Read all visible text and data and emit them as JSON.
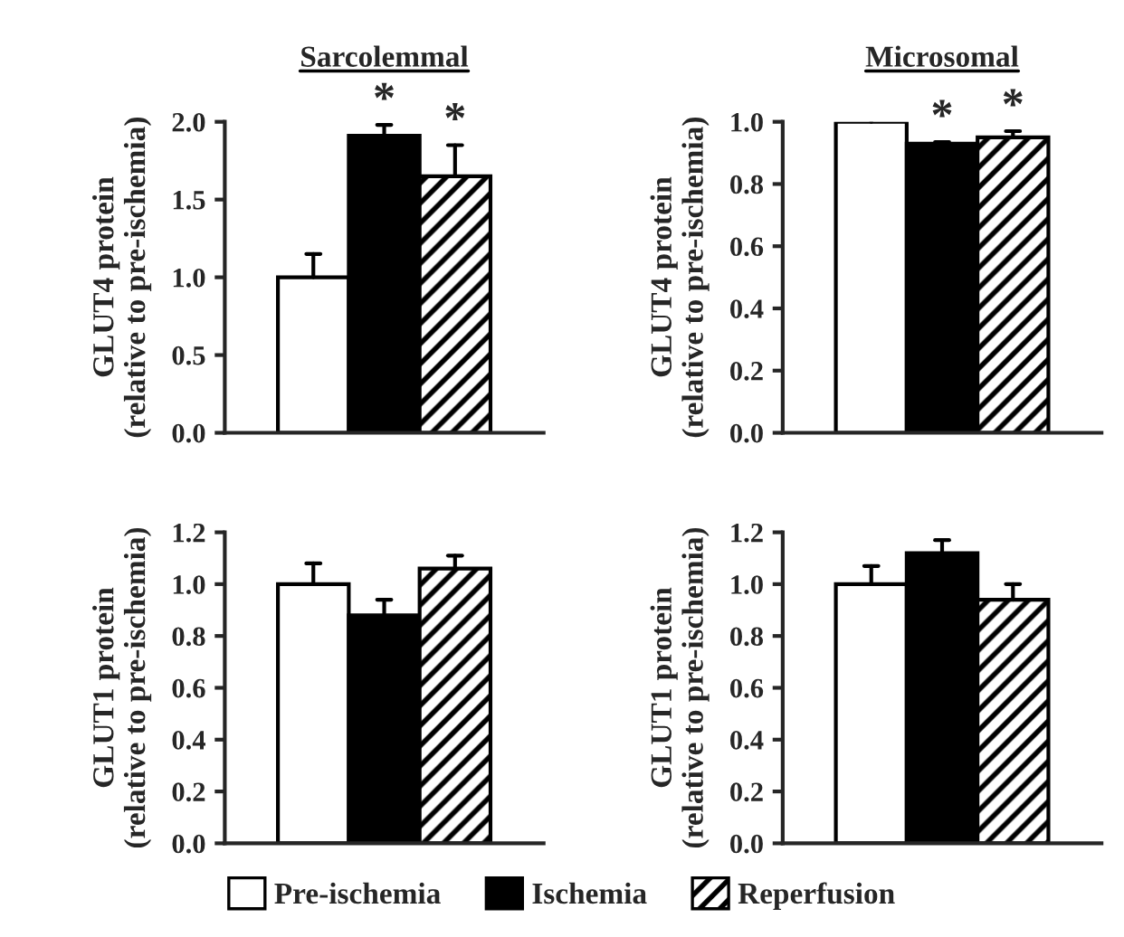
{
  "chart_data": [
    {
      "type": "bar",
      "title": "Sarcolemmal",
      "ylabel": "GLUT4 protein\n(relative to pre-ischemia)",
      "categories": [
        null
      ],
      "ylim": [
        0,
        2.0
      ],
      "yticks": [
        {
          "value": 0,
          "label": "0.0"
        },
        {
          "value": 0.5,
          "label": "0.5"
        },
        {
          "value": 1.0,
          "label": "1.0"
        },
        {
          "value": 1.5,
          "label": "1.5"
        },
        {
          "value": 2.0,
          "label": "2.0"
        }
      ],
      "grid": false,
      "legend": "bottom",
      "annotations": [
        {
          "text": "*",
          "y": 1.98
        },
        {
          "text": "*",
          "y": 1.85
        }
      ],
      "series": [
        {
          "name": "Pre-ischemia",
          "color": "#ffffff",
          "values": [
            1.0
          ],
          "errors": [
            [
              1.0,
              1.15
            ]
          ]
        },
        {
          "name": "Ischemia",
          "color": "#000000",
          "values": [
            1.91
          ],
          "errors": [
            [
              1.91,
              1.98
            ]
          ]
        },
        {
          "name": "Reperfusion",
          "color": "#000000",
          "values": [
            1.65
          ],
          "errors": [
            [
              1.65,
              1.85
            ]
          ]
        }
      ]
    },
    {
      "type": "bar",
      "title": "Microsomal",
      "ylabel": "GLUT4 protein\n(relative to pre-ischemia)",
      "categories": [
        null
      ],
      "ylim": [
        0,
        1.0
      ],
      "yticks": [
        {
          "value": 0,
          "label": "0.0"
        },
        {
          "value": 0.2,
          "label": "0.2"
        },
        {
          "value": 0.4,
          "label": "0.4"
        },
        {
          "value": 0.6,
          "label": "0.6"
        },
        {
          "value": 0.8,
          "label": "0.8"
        },
        {
          "value": 1.0,
          "label": "1.0"
        }
      ],
      "grid": false,
      "annotations": [
        {
          "text": "*",
          "y": 0.935
        },
        {
          "text": "*",
          "y": 0.97
        }
      ],
      "series": [
        {
          "color": "#ffffff",
          "values": [
            1.0
          ],
          "errors": [
            [
              1.0,
              1.01
            ]
          ]
        },
        {
          "color": "#000000",
          "values": [
            0.93
          ],
          "errors": [
            [
              0.93,
              0.935
            ]
          ]
        },
        {
          "color": "#000000",
          "values": [
            0.95
          ],
          "errors": [
            [
              0.95,
              0.97
            ]
          ]
        }
      ]
    },
    {
      "type": "bar",
      "ylabel": "GLUT1 protein\n(relative to pre-ischemia)",
      "categories": [
        null
      ],
      "ylim": [
        0,
        1.2
      ],
      "yticks": [
        {
          "value": 0,
          "label": "0.0"
        },
        {
          "value": 0.2,
          "label": "0.2"
        },
        {
          "value": 0.4,
          "label": "0.4"
        },
        {
          "value": 0.6,
          "label": "0.6"
        },
        {
          "value": 0.8,
          "label": "0.8"
        },
        {
          "value": 1.0,
          "label": "1.0"
        },
        {
          "value": 1.2,
          "label": "1.2"
        }
      ],
      "grid": false,
      "series": [
        {
          "color": "#ffffff",
          "values": [
            1.0
          ],
          "errors": [
            [
              1.0,
              1.08
            ]
          ]
        },
        {
          "color": "#000000",
          "values": [
            0.88
          ],
          "errors": [
            [
              0.88,
              0.94
            ]
          ]
        },
        {
          "color": "#000000",
          "values": [
            1.06
          ],
          "errors": [
            [
              1.06,
              1.11
            ]
          ]
        }
      ]
    },
    {
      "type": "bar",
      "ylabel": "GLUT1 protein\n(relative to pre-ischemia)",
      "categories": [
        null
      ],
      "ylim": [
        0,
        1.2
      ],
      "yticks": [
        {
          "value": 0,
          "label": "0.0"
        },
        {
          "value": 0.2,
          "label": "0.2"
        },
        {
          "value": 0.4,
          "label": "0.4"
        },
        {
          "value": 0.6,
          "label": "0.6"
        },
        {
          "value": 0.8,
          "label": "0.8"
        },
        {
          "value": 1.0,
          "label": "1.0"
        },
        {
          "value": 1.2,
          "label": "1.2"
        }
      ],
      "grid": false,
      "series": [
        {
          "color": "#ffffff",
          "values": [
            1.0
          ],
          "errors": [
            [
              1.0,
              1.07
            ]
          ]
        },
        {
          "color": "#000000",
          "values": [
            1.12
          ],
          "errors": [
            [
              1.12,
              1.17
            ]
          ]
        },
        {
          "color": "#000000",
          "values": [
            0.94
          ],
          "errors": [
            [
              0.94,
              1.0
            ]
          ]
        }
      ]
    }
  ]
}
